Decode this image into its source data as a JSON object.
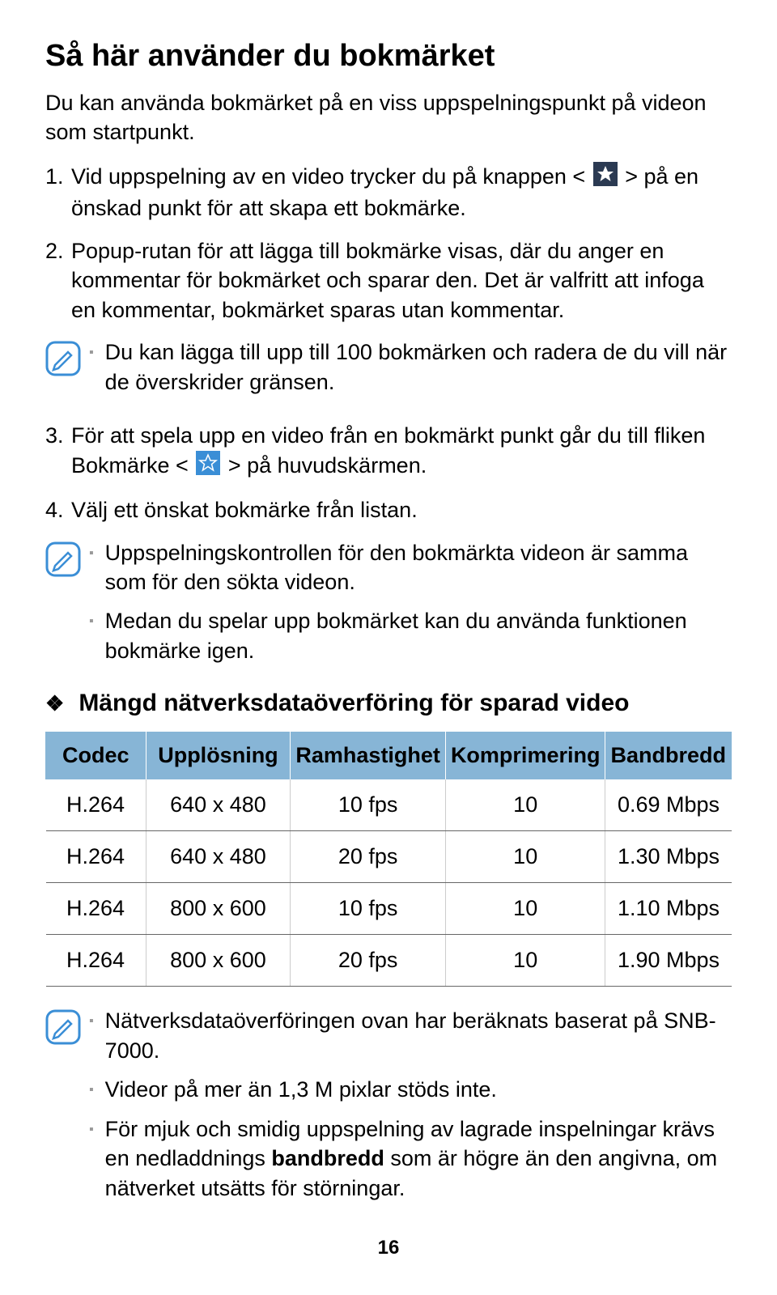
{
  "heading": "Så här använder du bokmärket",
  "intro": "Du kan använda bokmärket på en viss uppspelningspunkt på videon som startpunkt.",
  "steps": [
    {
      "num": "1.",
      "pre": "Vid uppspelning av en video trycker du på knappen < ",
      "post": " > på en önskad punkt för att skapa ett bokmärke.",
      "icon": "star-dark"
    },
    {
      "num": "2.",
      "text": "Popup-rutan för att lägga till bokmärke visas, där du anger en kommentar för bokmärket och sparar den. Det är valfritt att infoga en kommentar, bokmärket sparas utan kommentar."
    }
  ],
  "note1": [
    "Du kan lägga till upp till 100 bokmärken och radera de du vill när de överskrider gränsen."
  ],
  "steps2": [
    {
      "num": "3.",
      "pre": "För att spela upp en video från en bokmärkt punkt går du till fliken Bokmärke < ",
      "post": " > på huvudskärmen.",
      "icon": "star-light"
    },
    {
      "num": "4.",
      "text": "Välj ett önskat bokmärke från listan."
    }
  ],
  "note2": [
    "Uppspelningskontrollen för den bokmärkta videon är samma som för den sökta videon.",
    "Medan du spelar upp bokmärket kan du använda funktionen bokmärke igen."
  ],
  "section_title": "Mängd nätverksdataöverföring för sparad video",
  "table": {
    "header_bg": "#87b5d6",
    "columns": [
      "Codec",
      "Upplösning",
      "Ramhastighet",
      "Komprimering",
      "Bandbredd"
    ],
    "rows": [
      [
        "H.264",
        "640 x 480",
        "10 fps",
        "10",
        "0.69 Mbps"
      ],
      [
        "H.264",
        "640 x 480",
        "20 fps",
        "10",
        "1.30 Mbps"
      ],
      [
        "H.264",
        "800 x 600",
        "10 fps",
        "10",
        "1.10 Mbps"
      ],
      [
        "H.264",
        "800 x 600",
        "20 fps",
        "10",
        "1.90 Mbps"
      ]
    ]
  },
  "note3": [
    "Nätverksdataöverföringen ovan har beräknats baserat på SNB-7000.",
    "Videor på mer än 1,3 M pixlar stöds inte.",
    {
      "pre": "För mjuk och smidig uppspelning av lagrade inspelningar krävs en nedladdnings ",
      "bold": "bandbredd",
      "post": " som är högre än den angivna, om nätverket utsätts för störningar."
    }
  ],
  "page_number": "16",
  "icons": {
    "star_dark_bg": "#2b3a52",
    "star_light_bg": "#3a8ed6",
    "star_fill": "#ffffff",
    "pencil_stroke": "#3a8ed6"
  }
}
